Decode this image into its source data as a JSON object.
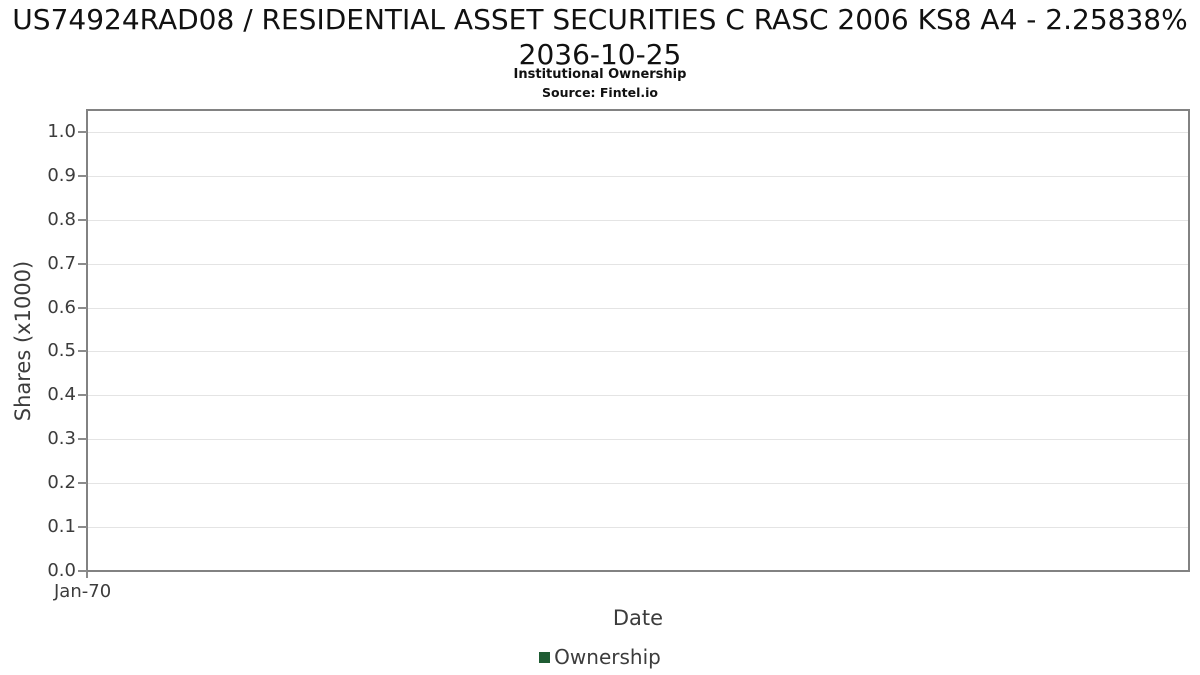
{
  "chart_data": {
    "type": "line",
    "title": "US74924RAD08 / RESIDENTIAL ASSET SECURITIES C RASC 2006 KS8 A4 - 2.25838% 2036-10-25",
    "subtitle": "Institutional Ownership",
    "source": "Source: Fintel.io",
    "xlabel": "Date",
    "ylabel": "Shares (x1000)",
    "xticks": [
      "Jan-70"
    ],
    "yticks": [
      0.0,
      0.1,
      0.2,
      0.3,
      0.4,
      0.5,
      0.6,
      0.7,
      0.8,
      0.9,
      1.0
    ],
    "ytick_decimals": 1,
    "ylim": [
      0,
      1.05
    ],
    "grid": "horizontal",
    "legend_position": "bottom-center",
    "series": [
      {
        "name": "Ownership",
        "color": "#1f5c33",
        "x": [],
        "values": []
      }
    ],
    "colors": {
      "axis_border": "#828282",
      "gridline": "#e4e4e4",
      "tick_mark": "#8b8b8b",
      "tick_text": "#3c3c3c",
      "axis_label_text": "#3c3c3c",
      "legend_text": "#3c3c3c",
      "title_text": "#111111"
    }
  }
}
